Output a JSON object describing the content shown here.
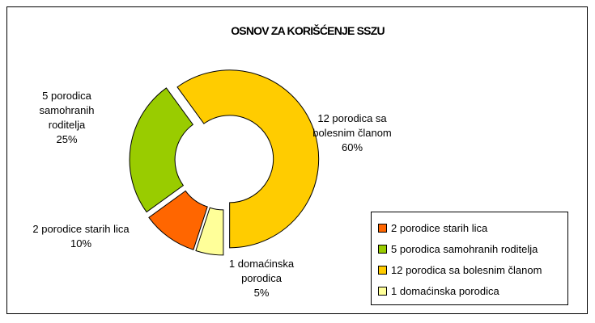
{
  "chart_data": {
    "type": "donut",
    "title": "OSNOV ZA KORIŠĆENJE SSZU",
    "categories": [
      "2 porodice starih lica",
      "5 porodica samohranih roditelja",
      "12 porodica sa bolesnim članom",
      "1 domaćinska porodica"
    ],
    "values": [
      10,
      25,
      60,
      5
    ],
    "value_labels": [
      "10%",
      "25%",
      "60%",
      "5%"
    ],
    "colors": [
      "#ff6600",
      "#99cc00",
      "#ffcc00",
      "#ffff99"
    ],
    "legend": "right"
  }
}
